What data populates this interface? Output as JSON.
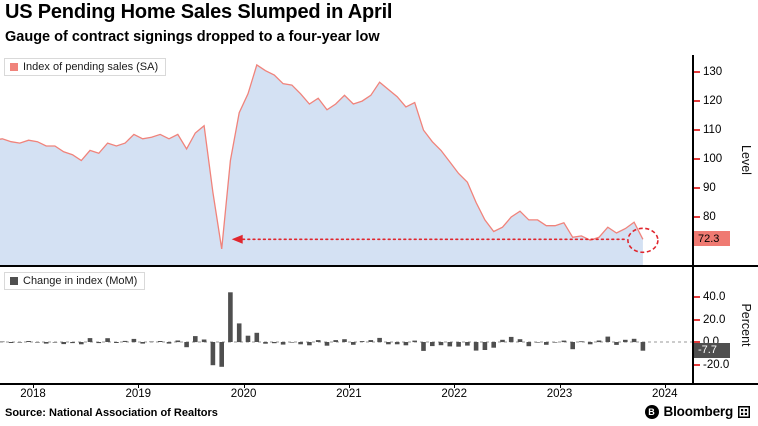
{
  "header": {
    "title": "US Pending Home Sales Slumped in April",
    "subtitle": "Gauge of contract signings dropped to a four-year low"
  },
  "footer": {
    "source": "Source: National Association of Realtors",
    "brand": "Bloomberg"
  },
  "colors": {
    "tick": "#e23b3b",
    "axis": "#000000"
  },
  "annotation": {
    "level": 72.3,
    "from_month_index": 27,
    "color": "#e0262e"
  },
  "x_axis": {
    "years": [
      2018,
      2019,
      2020,
      2021,
      2022,
      2023,
      2024
    ]
  },
  "chart_data": [
    {
      "type": "area",
      "legend": "Index of pending sales (SA)",
      "ylabel": "Level",
      "x_start": "2018-01",
      "frequency": "monthly",
      "ylim": [
        63.1,
        135.9
      ],
      "yticks": [
        130,
        120,
        110,
        100,
        90,
        80
      ],
      "ytick_labels": [
        "130",
        "120",
        "110",
        "100",
        "90",
        "80"
      ],
      "last_value": 72.3,
      "last_value_label": "72.3",
      "line_color": "#f0837b",
      "fill_color": "#d4e1f3",
      "box_color": "#ef7a72",
      "box_text_color": "#000000",
      "values": [
        108.0,
        106.5,
        107.0,
        106.0,
        105.5,
        106.5,
        106.0,
        104.5,
        104.5,
        102.5,
        101.5,
        99.5,
        103.0,
        102.0,
        105.5,
        104.5,
        105.5,
        108.5,
        107.0,
        107.5,
        108.5,
        107.0,
        108.5,
        103.5,
        109.0,
        111.5,
        88.5,
        69.0,
        99.5,
        116.0,
        122.5,
        132.5,
        130.5,
        129.0,
        126.0,
        125.5,
        122.5,
        119.0,
        121.0,
        117.0,
        119.0,
        122.0,
        119.0,
        120.0,
        122.0,
        126.5,
        124.0,
        121.5,
        118.0,
        119.5,
        110.0,
        106.0,
        103.0,
        99.0,
        95.0,
        92.0,
        85.0,
        79.0,
        75.0,
        76.5,
        80.0,
        82.0,
        79.0,
        79.0,
        77.0,
        77.0,
        78.0,
        73.0,
        73.5,
        72.0,
        73.0,
        76.5,
        74.5,
        76.0,
        78.2,
        72.3
      ]
    },
    {
      "type": "bar",
      "legend": "Change in index (MoM)",
      "ylabel": "Percent",
      "x_start": "2018-01",
      "frequency": "monthly",
      "ylim": [
        -36.4,
        65.8
      ],
      "yticks": [
        40,
        20,
        0,
        -20
      ],
      "ytick_labels": [
        "40.0",
        "20.0",
        "0.0",
        "-20.0"
      ],
      "last_value": -7.7,
      "last_value_label": "-7.7",
      "bar_color": "#4f4f4f",
      "box_color": "#4f4f4f",
      "box_text_color": "#ffffff",
      "values": [
        0.5,
        -1.4,
        0.5,
        -0.9,
        -0.5,
        0.9,
        -0.5,
        -1.4,
        0.0,
        -1.9,
        -1.0,
        -2.0,
        3.5,
        -1.0,
        3.4,
        -0.9,
        1.0,
        2.8,
        -1.4,
        0.5,
        0.9,
        -1.4,
        1.4,
        -4.6,
        5.3,
        2.3,
        -20.6,
        -22.0,
        44.2,
        16.6,
        5.6,
        8.2,
        -1.5,
        -1.1,
        -2.3,
        -0.4,
        -2.0,
        -2.9,
        1.7,
        -3.3,
        1.7,
        2.5,
        -2.5,
        0.8,
        1.7,
        3.7,
        -2.0,
        -2.0,
        -2.9,
        1.3,
        -7.9,
        -3.6,
        -2.8,
        -3.9,
        -4.2,
        -3.2,
        -7.6,
        -7.1,
        -5.1,
        2.0,
        4.6,
        2.5,
        -3.7,
        0.0,
        -2.5,
        0.0,
        1.3,
        -6.4,
        0.7,
        -2.0,
        1.4,
        4.8,
        -2.6,
        2.0,
        2.9,
        -7.7
      ]
    }
  ]
}
